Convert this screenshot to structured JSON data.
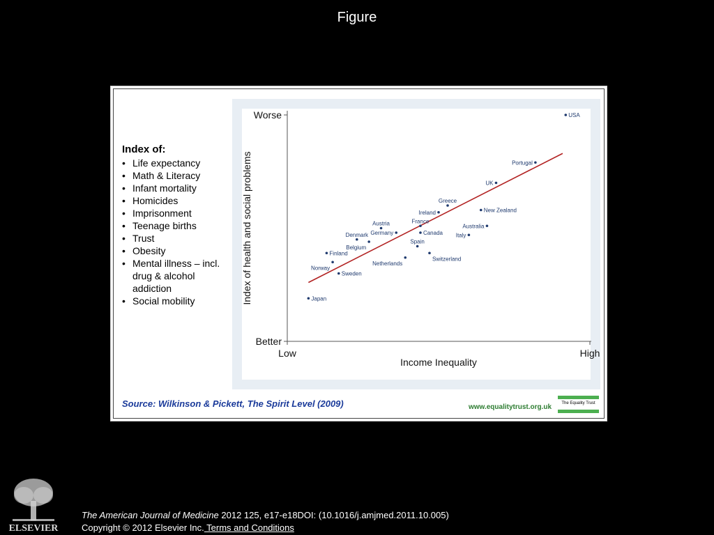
{
  "page": {
    "title": "Figure"
  },
  "index_box": {
    "heading": "Index of:",
    "items": [
      "Life expectancy",
      "Math & Literacy",
      "Infant mortality",
      "Homicides",
      "Imprisonment",
      "Teenage births",
      "Trust",
      "Obesity",
      "Mental illness – incl. drug & alcohol addiction",
      "Social mobility"
    ]
  },
  "source": "Source: Wilkinson & Pickett, The Spirit Level (2009)",
  "site": "www.equalitytrust.org.uk",
  "logo_text": "The Equality Trust",
  "caption": {
    "journal": "The American Journal of Medicine",
    "citation": " 2012 125, e17-e18DOI: (10.1016/j.amjmed.2011.10.005)",
    "copyright": "Copyright © 2012 Elsevier Inc.",
    "terms": " Terms and Conditions"
  },
  "colors": {
    "trend": "#b22222",
    "points": "#1f3a6e",
    "panel": "#e8eef4",
    "logo_green": "#4caf50"
  },
  "chart_data": {
    "type": "scatter",
    "xlabel": "Income Inequality",
    "ylabel": "Index of health and social problems",
    "x_ticks": [
      "Low",
      "High"
    ],
    "y_ticks": [
      "Better",
      "Worse"
    ],
    "xlim": [
      0,
      100
    ],
    "ylim": [
      0,
      100
    ],
    "grid": false,
    "points": [
      {
        "name": "USA",
        "x": 92,
        "y": 100
      },
      {
        "name": "Portugal",
        "x": 82,
        "y": 79
      },
      {
        "name": "UK",
        "x": 69,
        "y": 70
      },
      {
        "name": "Greece",
        "x": 53,
        "y": 60
      },
      {
        "name": "New Zealand",
        "x": 64,
        "y": 58
      },
      {
        "name": "Ireland",
        "x": 50,
        "y": 57
      },
      {
        "name": "France",
        "x": 44,
        "y": 51
      },
      {
        "name": "Australia",
        "x": 66,
        "y": 51
      },
      {
        "name": "Austria",
        "x": 31,
        "y": 50
      },
      {
        "name": "Germany",
        "x": 36,
        "y": 48
      },
      {
        "name": "Canada",
        "x": 44,
        "y": 48
      },
      {
        "name": "Italy",
        "x": 60,
        "y": 47
      },
      {
        "name": "Denmark",
        "x": 23,
        "y": 45
      },
      {
        "name": "Belgium",
        "x": 27,
        "y": 44
      },
      {
        "name": "Spain",
        "x": 43,
        "y": 42
      },
      {
        "name": "Switzerland",
        "x": 47,
        "y": 39
      },
      {
        "name": "Finland",
        "x": 13,
        "y": 39
      },
      {
        "name": "Netherlands",
        "x": 39,
        "y": 37
      },
      {
        "name": "Norway",
        "x": 15,
        "y": 35
      },
      {
        "name": "Sweden",
        "x": 17,
        "y": 30
      },
      {
        "name": "Japan",
        "x": 7,
        "y": 19
      }
    ],
    "trend_line": {
      "x": [
        7,
        91
      ],
      "y": [
        26,
        83
      ]
    }
  }
}
